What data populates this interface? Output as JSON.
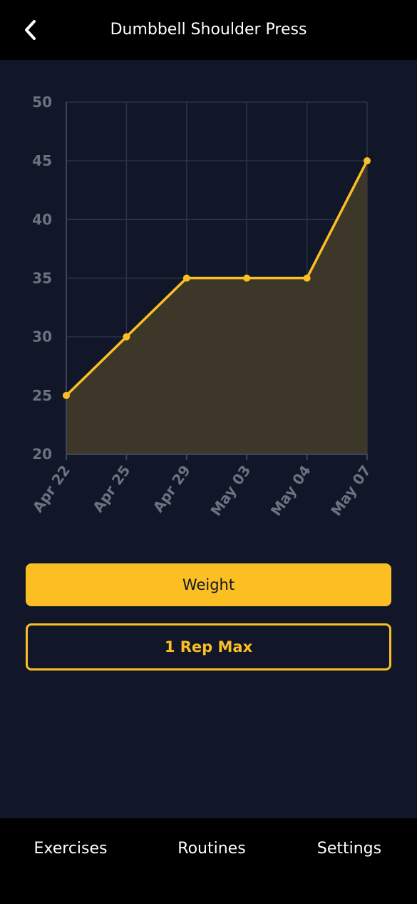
{
  "header": {
    "title": "Dumbbell Shoulder Press",
    "back_icon": "chevron-left-icon"
  },
  "chart_data": {
    "type": "area",
    "categories": [
      "Apr 22",
      "Apr 25",
      "Apr 29",
      "May 03",
      "May 04",
      "May 07"
    ],
    "values": [
      25,
      30,
      35,
      35,
      35,
      45
    ],
    "ylim": [
      20,
      50
    ],
    "yticks": [
      20,
      25,
      30,
      35,
      40,
      45,
      50
    ],
    "grid": true,
    "title": "",
    "xlabel": "",
    "ylabel": "",
    "colors": {
      "line": "#fbbf24",
      "fill": "#3d3729",
      "grid": "#2a3446",
      "axis": "#3a4556"
    }
  },
  "buttons": {
    "weight_label": "Weight",
    "one_rep_max_label": "1 Rep Max"
  },
  "tabs": {
    "exercises": "Exercises",
    "routines": "Routines",
    "settings": "Settings"
  },
  "colors": {
    "background": "#111729",
    "accent": "#fbbf24",
    "bar": "#000000"
  }
}
